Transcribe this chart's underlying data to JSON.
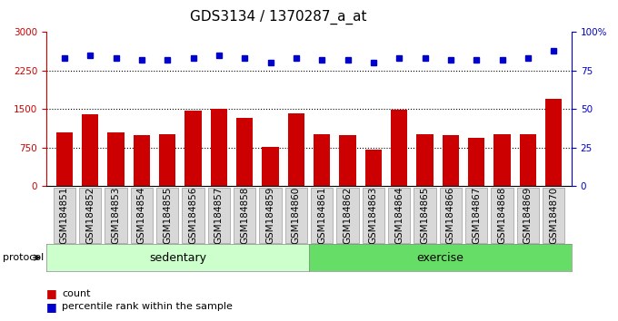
{
  "title": "GDS3134 / 1370287_a_at",
  "samples": [
    "GSM184851",
    "GSM184852",
    "GSM184853",
    "GSM184854",
    "GSM184855",
    "GSM184856",
    "GSM184857",
    "GSM184858",
    "GSM184859",
    "GSM184860",
    "GSM184861",
    "GSM184862",
    "GSM184863",
    "GSM184864",
    "GSM184865",
    "GSM184866",
    "GSM184867",
    "GSM184868",
    "GSM184869",
    "GSM184870"
  ],
  "bar_values": [
    1050,
    1400,
    1050,
    1000,
    1020,
    1470,
    1510,
    1330,
    760,
    1410,
    1020,
    990,
    720,
    1490,
    1020,
    1000,
    950,
    1020,
    1020,
    1700
  ],
  "percentile_values": [
    83,
    85,
    83,
    82,
    82,
    83,
    85,
    83,
    80,
    83,
    82,
    82,
    80,
    83,
    83,
    82,
    82,
    82,
    83,
    88
  ],
  "bar_color": "#cc0000",
  "dot_color": "#0000cc",
  "left_ylim": [
    0,
    3000
  ],
  "right_ylim": [
    0,
    100
  ],
  "left_yticks": [
    0,
    750,
    1500,
    2250,
    3000
  ],
  "right_yticks": [
    0,
    25,
    50,
    75,
    100
  ],
  "right_yticklabels": [
    "0",
    "25",
    "50",
    "75",
    "100%"
  ],
  "grid_values": [
    750,
    1500,
    2250
  ],
  "sedentary_label": "sedentary",
  "exercise_label": "exercise",
  "sedentary_count": 10,
  "exercise_count": 10,
  "protocol_label": "protocol",
  "legend_bar_label": "count",
  "legend_dot_label": "percentile rank within the sample",
  "sedentary_color": "#ccffcc",
  "exercise_color": "#66dd66",
  "title_fontsize": 11,
  "tick_fontsize": 7.5,
  "label_fontsize": 8,
  "axis_label_color_left": "#cc0000",
  "axis_label_color_right": "#0000cc",
  "xticklabel_bg": "#d8d8d8",
  "fig_bg": "#ffffff"
}
